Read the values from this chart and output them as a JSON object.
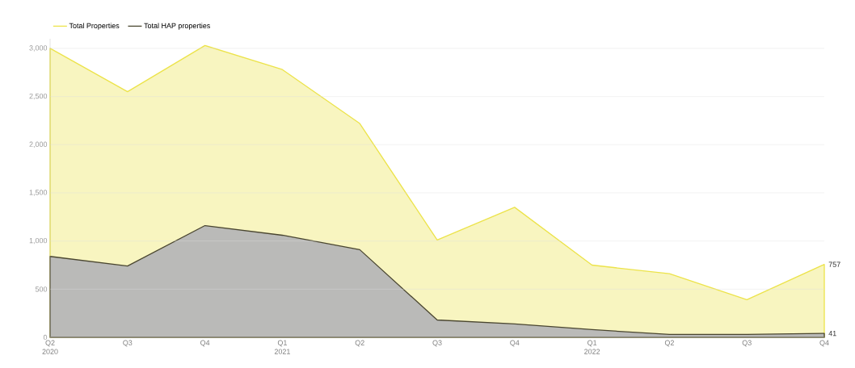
{
  "chart_data": {
    "type": "area",
    "categories": [
      "Q2 2020",
      "Q3",
      "Q4",
      "Q1 2021",
      "Q2",
      "Q3",
      "Q4",
      "Q1 2022",
      "Q2",
      "Q3",
      "Q4"
    ],
    "series": [
      {
        "name": "Total Properties",
        "color": "#ece34a",
        "values": [
          3000,
          2550,
          3030,
          2780,
          2220,
          1010,
          1350,
          750,
          660,
          390,
          757
        ],
        "value_labels": [
          null,
          null,
          null,
          null,
          null,
          null,
          null,
          null,
          null,
          null,
          "757"
        ]
      },
      {
        "name": "Total HAP properties",
        "color": "#4a4630",
        "values": [
          840,
          740,
          1160,
          1060,
          910,
          180,
          140,
          80,
          30,
          30,
          41
        ],
        "value_labels": [
          null,
          null,
          null,
          null,
          null,
          null,
          null,
          null,
          null,
          null,
          "41"
        ]
      }
    ],
    "ylim": [
      0,
      3100
    ],
    "yticks": [
      0,
      {
        "value": 500,
        "label": "500"
      },
      {
        "value": 1000,
        "label": "1,000"
      },
      {
        "value": 1500,
        "label": "1,500"
      },
      {
        "value": 2000,
        "label": "2,000"
      },
      {
        "value": 2500,
        "label": "2,500"
      },
      {
        "value": 3000,
        "label": "3,000"
      }
    ],
    "grid": "y",
    "legend": "top left"
  }
}
